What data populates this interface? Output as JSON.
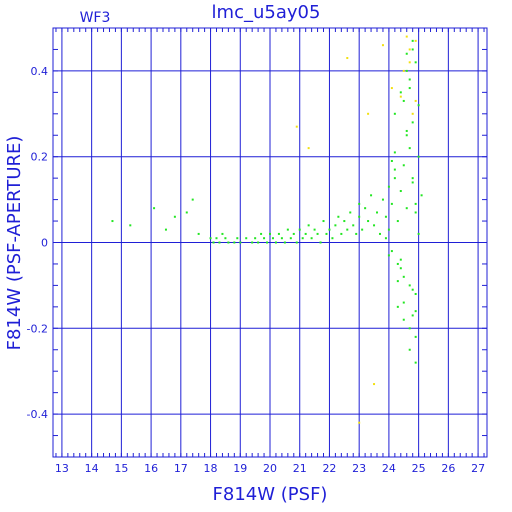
{
  "chart_data": {
    "type": "scatter",
    "title": "lmc_u5ay05",
    "panel_label": "WF3",
    "xlabel": "F814W (PSF)",
    "ylabel": "F814W (PSF-APERTURE)",
    "xlim": [
      12.7,
      27.3
    ],
    "ylim": [
      -0.5,
      0.5
    ],
    "x_ticks": [
      13,
      14,
      15,
      16,
      17,
      18,
      19,
      20,
      21,
      22,
      23,
      24,
      25,
      26,
      27
    ],
    "y_ticks": [
      -0.4,
      -0.2,
      0,
      0.2,
      0.4
    ],
    "grid": true,
    "colors": {
      "axes": "#1f1fd6",
      "grid": "#1f1fd6",
      "green": "#22e622",
      "yellow": "#f2e010"
    },
    "series": [
      {
        "color": "green",
        "x": [
          14.7,
          15.3,
          16.1,
          16.5,
          16.8,
          17.2,
          17.4,
          17.6,
          18.0,
          18.1,
          18.2,
          18.3,
          18.4,
          18.5,
          18.6,
          18.8,
          18.9,
          19.0,
          19.2,
          19.4,
          19.5,
          19.6,
          19.7,
          19.8,
          19.9,
          20.0,
          20.1,
          20.2,
          20.3,
          20.4,
          20.5,
          20.6,
          20.7,
          20.8,
          20.9,
          21.0,
          21.1,
          21.2,
          21.3,
          21.4,
          21.5,
          21.6,
          21.7,
          21.8,
          21.9,
          22.0,
          22.1,
          22.2,
          22.3,
          22.4,
          22.5,
          22.6,
          22.7,
          22.8,
          22.9,
          23.0,
          23.0,
          23.1,
          23.2,
          23.3,
          23.4,
          23.5,
          23.6,
          23.7,
          23.8,
          23.9,
          24.0,
          24.0,
          24.1,
          24.2,
          24.3,
          24.4,
          24.5,
          24.6,
          24.7,
          24.8,
          24.9,
          25.0,
          25.1,
          24.1,
          24.3,
          24.5,
          24.7,
          24.9,
          24.2,
          24.4,
          24.6,
          24.8,
          25.0,
          24.3,
          24.5,
          24.7,
          24.9,
          24.6,
          24.8,
          24.7,
          24.9,
          24.5,
          24.8,
          23.9,
          24.0,
          24.2,
          24.4,
          24.6,
          24.8,
          25.0,
          24.1,
          24.3,
          24.5,
          24.7,
          24.9,
          24.2,
          24.6,
          24.8,
          24.4,
          24.7,
          24.9,
          24.8,
          24.9
        ],
        "y": [
          0.05,
          0.04,
          0.08,
          0.03,
          0.06,
          0.07,
          0.1,
          0.02,
          0.01,
          0.0,
          0.01,
          0.0,
          0.02,
          0.01,
          0.0,
          0.0,
          0.01,
          0.0,
          0.01,
          0.0,
          0.01,
          0.0,
          0.02,
          0.01,
          0.0,
          0.02,
          0.01,
          0.0,
          0.02,
          0.01,
          0.0,
          0.03,
          0.01,
          0.02,
          0.0,
          0.03,
          0.01,
          0.02,
          0.04,
          0.01,
          0.03,
          0.02,
          0.0,
          0.05,
          0.02,
          0.03,
          0.01,
          0.04,
          0.06,
          0.02,
          0.05,
          0.03,
          0.07,
          0.04,
          0.02,
          0.06,
          0.09,
          0.03,
          0.08,
          0.05,
          0.11,
          0.04,
          0.07,
          0.02,
          0.1,
          0.06,
          0.13,
          0.03,
          0.09,
          0.15,
          0.05,
          0.12,
          0.18,
          0.08,
          0.22,
          0.14,
          0.07,
          0.2,
          0.11,
          -0.02,
          -0.05,
          -0.08,
          -0.1,
          -0.12,
          0.3,
          0.35,
          0.4,
          0.45,
          0.32,
          -0.15,
          -0.18,
          -0.2,
          -0.22,
          0.25,
          0.28,
          -0.25,
          -0.28,
          -0.14,
          -0.17,
          0.01,
          -0.03,
          0.17,
          -0.06,
          0.26,
          -0.11,
          0.02,
          0.19,
          -0.09,
          0.33,
          0.38,
          -0.16,
          0.21,
          0.44,
          0.47,
          -0.04,
          0.36,
          0.42,
          0.15,
          0.09
        ]
      },
      {
        "color": "yellow",
        "x": [
          20.9,
          21.3,
          22.6,
          23.0,
          23.3,
          23.5,
          23.8,
          24.1,
          24.4,
          24.6,
          24.7,
          24.8,
          24.9,
          24.5,
          24.7,
          24.9
        ],
        "y": [
          0.27,
          0.22,
          0.43,
          -0.42,
          0.3,
          -0.33,
          0.46,
          0.36,
          0.34,
          0.48,
          0.42,
          0.3,
          0.47,
          0.4,
          0.45,
          0.33
        ]
      }
    ]
  }
}
